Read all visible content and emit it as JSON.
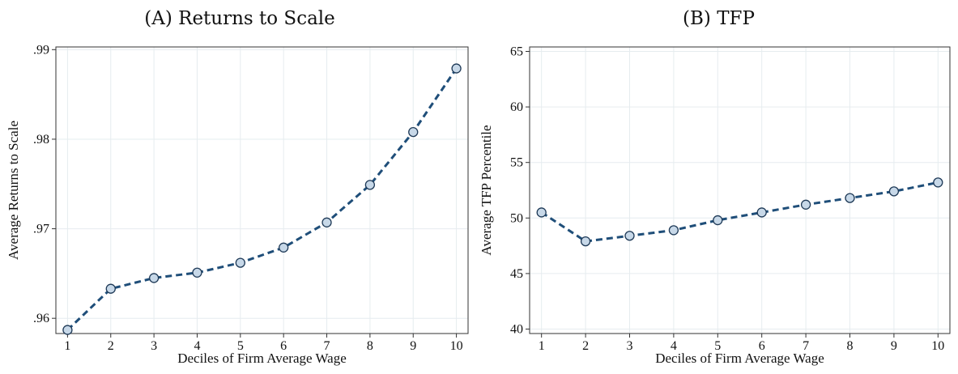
{
  "chart_data": [
    {
      "type": "line",
      "panel_label": "(A)",
      "title": "Returns to Scale",
      "xlabel": "Deciles of Firm Average Wage",
      "ylabel": "Average Returns to Scale",
      "x": [
        1,
        2,
        3,
        4,
        5,
        6,
        7,
        8,
        9,
        10
      ],
      "series": [
        {
          "values": [
            0.9587,
            0.9633,
            0.9645,
            0.9651,
            0.9662,
            0.9679,
            0.9707,
            0.9749,
            0.9808,
            0.9879
          ]
        }
      ],
      "xlim": [
        1,
        10
      ],
      "ylim": [
        0.9583,
        0.9903
      ],
      "xticks": [
        1,
        2,
        3,
        4,
        5,
        6,
        7,
        8,
        9,
        10
      ],
      "yticks": [
        0.96,
        0.97,
        0.98,
        0.99
      ],
      "ytick_labels": [
        ".96",
        ".97",
        ".98",
        ".99"
      ],
      "grid": true,
      "line_style": "dashed",
      "line_color": "#1f4e79",
      "marker_fill": "#c7d8e8",
      "marker_edge": "#1f3a57"
    },
    {
      "type": "line",
      "panel_label": "(B)",
      "title": "TFP",
      "xlabel": "Deciles of Firm Average Wage",
      "ylabel": "Average TFP Percentile",
      "x": [
        1,
        2,
        3,
        4,
        5,
        6,
        7,
        8,
        9,
        10
      ],
      "series": [
        {
          "values": [
            50.5,
            47.9,
            48.4,
            48.9,
            49.8,
            50.5,
            51.2,
            51.8,
            52.4,
            53.2
          ]
        }
      ],
      "xlim": [
        1,
        10
      ],
      "ylim": [
        39.6,
        65.4
      ],
      "xticks": [
        1,
        2,
        3,
        4,
        5,
        6,
        7,
        8,
        9,
        10
      ],
      "yticks": [
        40,
        45,
        50,
        55,
        60,
        65
      ],
      "ytick_labels": [
        "40",
        "45",
        "50",
        "55",
        "60",
        "65"
      ],
      "grid": true,
      "line_style": "dashed",
      "line_color": "#1f4e79",
      "marker_fill": "#c7d8e8",
      "marker_edge": "#1f3a57"
    }
  ]
}
